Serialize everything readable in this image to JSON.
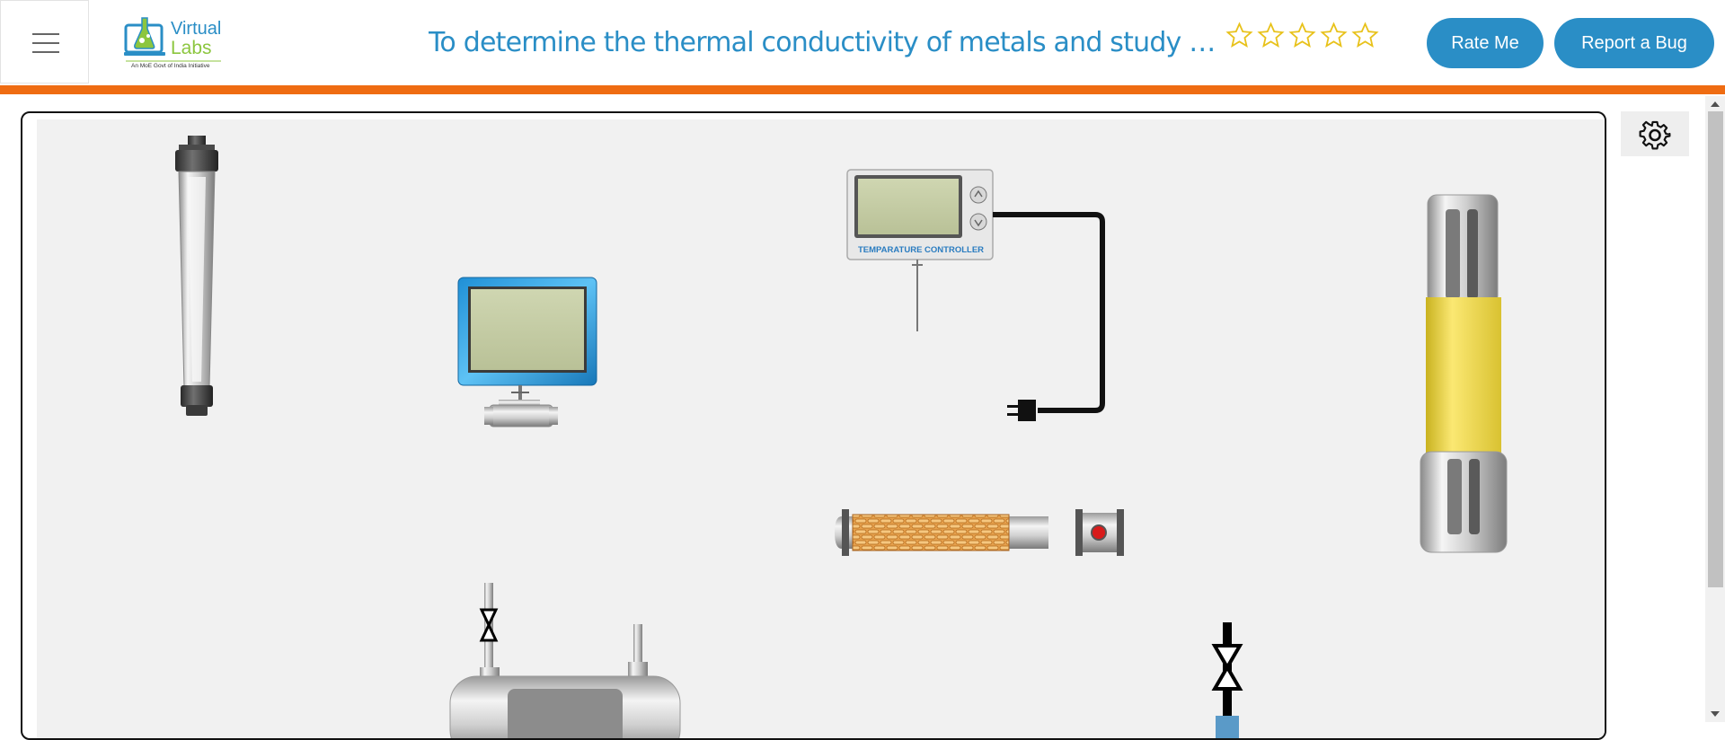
{
  "header": {
    "title": "To determine the thermal conductivity of metals and study the…",
    "logo_word1": "Virtual",
    "logo_word2": "Labs",
    "logo_tagline": "An MoE Govt of India Initiative",
    "rating_stars": 5,
    "rate_label": "Rate Me",
    "bug_label": "Report a Bug"
  },
  "simulation": {
    "controller_label": "TEMPARATURE CONTROLLER"
  },
  "colors": {
    "accent": "#2a8ec6",
    "divider": "#ef6c12",
    "canvas_bg": "#f1f1f1"
  }
}
